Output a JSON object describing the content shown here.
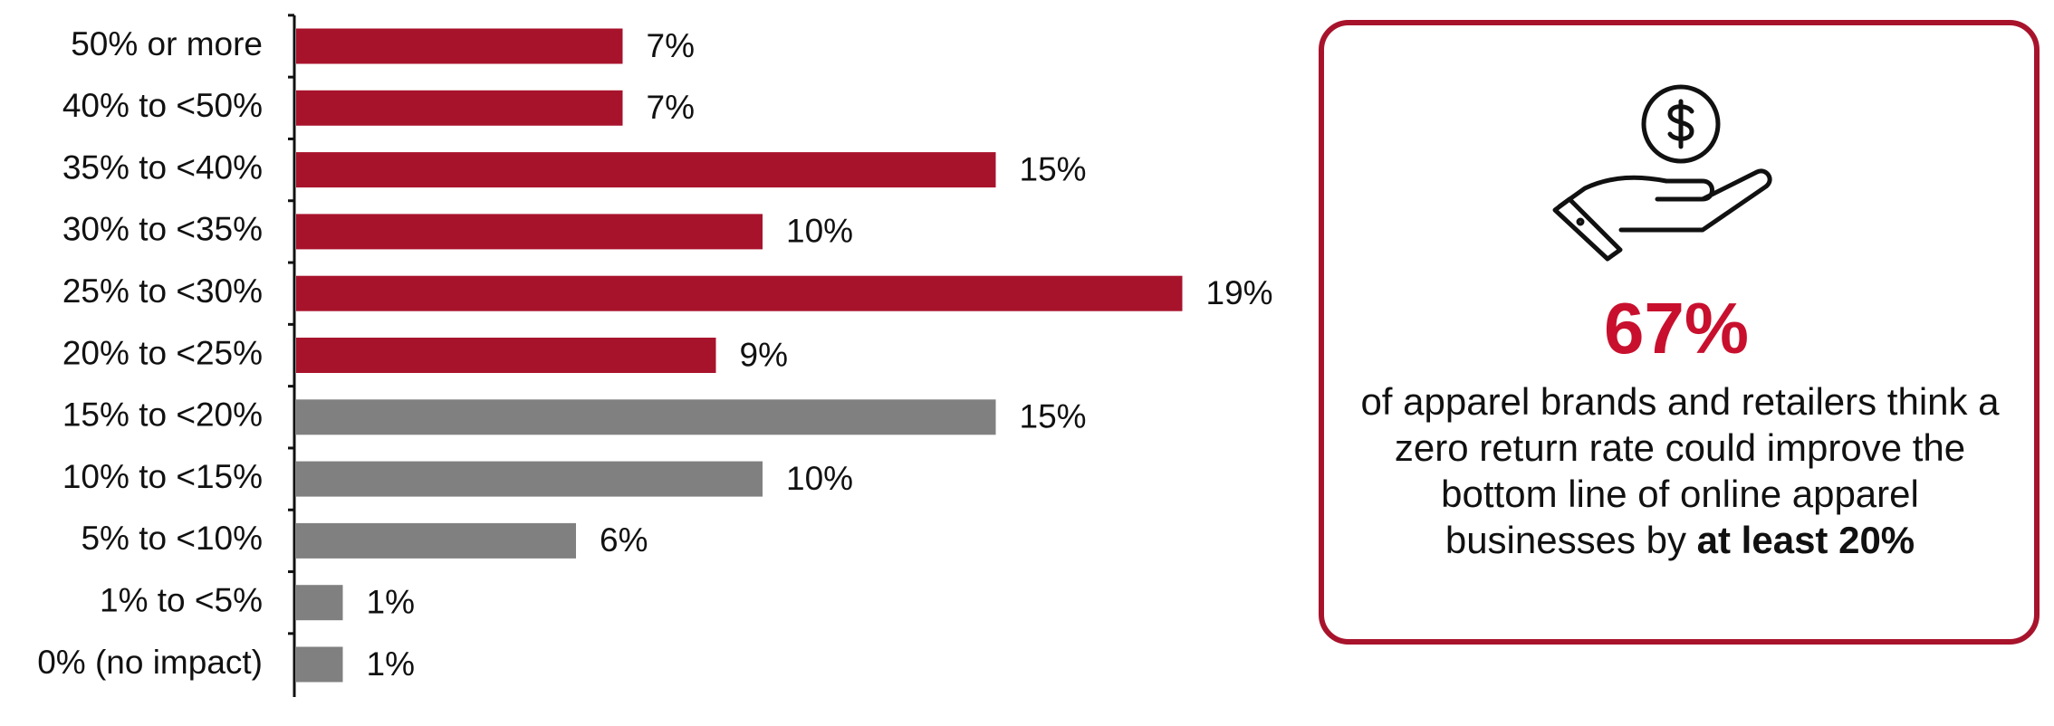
{
  "chart_data": {
    "type": "hbar",
    "categories": [
      "50% or more",
      "40% to <50%",
      "35% to <40%",
      "30% to <35%",
      "25% to <30%",
      "20% to <25%",
      "15% to <20%",
      "10% to <15%",
      "5% to <10%",
      "1% to <5%",
      "0% (no impact)"
    ],
    "values": [
      7,
      7,
      15,
      10,
      19,
      9,
      15,
      10,
      6,
      1,
      1
    ],
    "value_labels": [
      "7%",
      "7%",
      "15%",
      "10%",
      "19%",
      "9%",
      "15%",
      "10%",
      "6%",
      "1%",
      "1%"
    ],
    "colors": [
      "#a8132c",
      "#a8132c",
      "#a8132c",
      "#a8132c",
      "#a8132c",
      "#a8132c",
      "#808080",
      "#808080",
      "#808080",
      "#808080",
      "#808080"
    ],
    "callout": {
      "stat": "67%",
      "text": "of apparel brands and retailers think a zero return rate could improve the bottom line of online apparel businesses by",
      "bold": "at least 20%"
    }
  }
}
